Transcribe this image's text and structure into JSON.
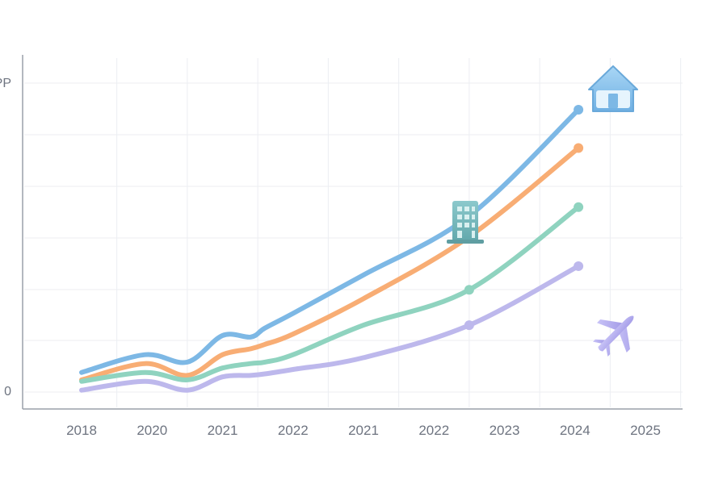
{
  "chart_data": {
    "type": "line",
    "title": "",
    "xlabel": "",
    "ylabel": "",
    "y_tick_labels": [
      "0",
      "PP"
    ],
    "ylim": [
      0,
      100
    ],
    "grid": true,
    "x_tick_labels": [
      "2018",
      "2020",
      "2021",
      "2022",
      "2021",
      "2022",
      "2023",
      "2024",
      "2025"
    ],
    "series": [
      {
        "color": "#7db8e5",
        "x": [
          0,
          0.9,
          1.5,
          2.0,
          2.4,
          2.6,
          3.0,
          4.0,
          5.5,
          7.05
        ],
        "values": [
          5,
          11,
          8.5,
          17.5,
          17,
          20,
          25,
          38,
          58,
          94
        ],
        "markers": [
          5.5,
          7.05
        ]
      },
      {
        "color": "#f8ad74",
        "x": [
          0,
          0.9,
          1.5,
          2.0,
          2.4,
          2.6,
          3.0,
          4.0,
          5.5,
          7.05
        ],
        "values": [
          2.5,
          8,
          4,
          11,
          13,
          14.5,
          18,
          30,
          51,
          81
        ]
      },
      {
        "color": "#8fd3bf",
        "x": [
          0,
          0.9,
          1.5,
          2.0,
          2.4,
          2.6,
          3.0,
          4.0,
          5.5,
          7.05
        ],
        "values": [
          2,
          5,
          2.5,
          6.5,
          8,
          8.5,
          11,
          21,
          33,
          61
        ]
      },
      {
        "color": "#bdb8ec",
        "x": [
          0,
          0.9,
          1.5,
          2.0,
          2.4,
          2.6,
          3.0,
          4.0,
          5.5,
          7.05
        ],
        "values": [
          -1,
          2,
          -1,
          3.5,
          4,
          4.5,
          6,
          10,
          21,
          41
        ]
      }
    ],
    "icons": [
      {
        "name": "house-icon",
        "color": "#7db8e5"
      },
      {
        "name": "building-icon",
        "color": "#6fb3b8"
      },
      {
        "name": "airplane-icon",
        "color": "#b3aef0"
      }
    ]
  }
}
